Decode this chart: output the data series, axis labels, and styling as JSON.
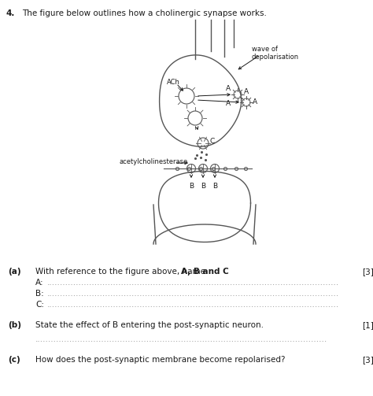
{
  "question_number": "4.",
  "question_text": "The figure below outlines how a cholinergic synapse works.",
  "bg_color": "#ffffff",
  "text_color": "#1a1a1a",
  "line_color": "#555555",
  "sub_questions": [
    {
      "label": "(a)",
      "text_plain": "With reference to the figure above, name ",
      "text_bold": "A, B and C",
      "mark": "[3]",
      "answer_lines": [
        "A:",
        "B:",
        "C:"
      ]
    },
    {
      "label": "(b)",
      "text_plain": "State the effect of B entering the post-synaptic neuron.",
      "text_bold": "",
      "mark": "[1]",
      "answer_lines": [
        ""
      ]
    },
    {
      "label": "(c)",
      "text_plain": "How does the post-synaptic membrane become repolarised?",
      "text_bold": "",
      "mark": "[3]",
      "answer_lines": []
    }
  ],
  "diagram": {
    "ACh_label": "ACh",
    "wave_label": "wave of\ndepolarisation",
    "acetyl_label": "acetylcholinesterase",
    "C_label": "C",
    "A_label": "A",
    "B_label": "B"
  }
}
